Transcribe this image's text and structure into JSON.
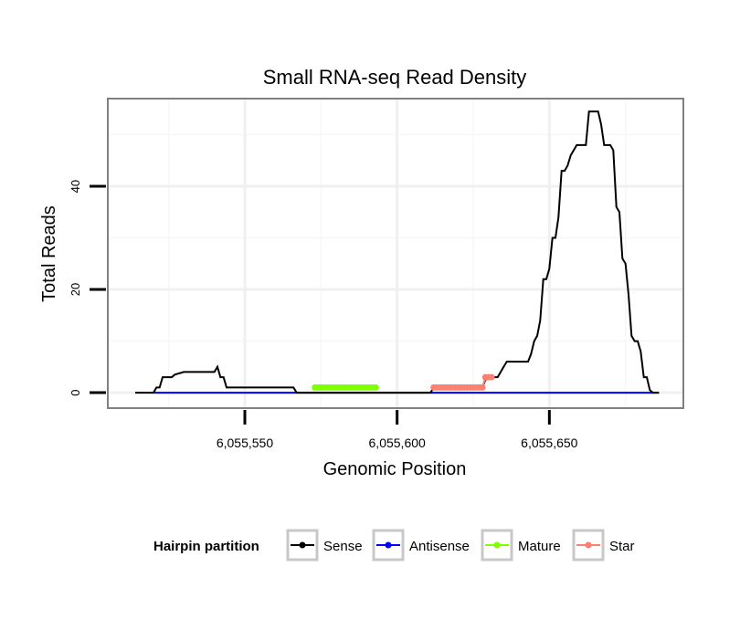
{
  "chart_data": {
    "type": "line",
    "title": "Small RNA-seq Read Density",
    "xlabel": "Genomic Position",
    "ylabel": "Total Reads",
    "xlim": [
      6055505,
      6055694
    ],
    "ylim": [
      -3,
      57
    ],
    "x_ticks": [
      6055550,
      6055600,
      6055650
    ],
    "x_tick_labels": [
      "6,055,550",
      "6,055,600",
      "6,055,650"
    ],
    "y_ticks": [
      0,
      20,
      40
    ],
    "y_tick_labels": [
      "0",
      "20",
      "40"
    ],
    "grid": true,
    "legend": {
      "title": "Hairpin partition",
      "position": "bottom",
      "entries": [
        "Sense",
        "Antisense",
        "Mature",
        "Star"
      ]
    },
    "series": [
      {
        "name": "Sense",
        "color": "#000000",
        "x": [
          6055514,
          6055520,
          6055521,
          6055522,
          6055523,
          6055525,
          6055526,
          6055527,
          6055530,
          6055531,
          6055537,
          6055540,
          6055541,
          6055542,
          6055543,
          6055544,
          6055566,
          6055567,
          6055611,
          6055612,
          6055628,
          6055629,
          6055632,
          6055633,
          6055635,
          6055636,
          6055640,
          6055641,
          6055642,
          6055643,
          6055644,
          6055645,
          6055646,
          6055647,
          6055648,
          6055649,
          6055650,
          6055651,
          6055652,
          6055653,
          6055654,
          6055655,
          6055656,
          6055657,
          6055658,
          6055659,
          6055661,
          6055662,
          6055663,
          6055664,
          6055665,
          6055666,
          6055667,
          6055668,
          6055669,
          6055670,
          6055671,
          6055672,
          6055673,
          6055674,
          6055675,
          6055676,
          6055677,
          6055678,
          6055679,
          6055680,
          6055681,
          6055682,
          6055683,
          6055684,
          6055685,
          6055686
        ],
        "values": [
          0,
          0,
          1,
          1,
          3,
          3,
          3,
          3.5,
          4,
          4,
          4,
          4,
          5,
          3,
          3,
          1,
          1,
          0,
          0,
          1,
          1,
          2.5,
          3,
          3,
          5,
          6,
          6,
          6,
          6,
          6,
          7.5,
          10,
          11,
          14,
          22,
          22,
          24,
          30,
          30,
          34,
          43,
          43,
          44,
          46,
          47,
          48,
          48,
          48,
          54.5,
          54.5,
          54.5,
          54.5,
          52,
          48,
          48,
          48,
          47,
          36,
          35,
          26,
          25,
          19,
          11,
          10,
          10,
          8,
          3,
          3,
          0.5,
          0,
          0,
          0
        ]
      },
      {
        "name": "Antisense",
        "color": "#0000ff",
        "x": [
          6055520,
          6055686
        ],
        "values": [
          0,
          0
        ]
      },
      {
        "name": "Mature",
        "color": "#7fff00",
        "x": [
          6055573,
          6055574,
          6055575,
          6055576,
          6055577,
          6055578,
          6055579,
          6055580,
          6055581,
          6055582,
          6055583,
          6055584,
          6055585,
          6055586,
          6055587,
          6055588,
          6055589,
          6055590,
          6055591,
          6055592,
          6055593
        ],
        "values": [
          1,
          1,
          1,
          1,
          1,
          1,
          1,
          1,
          1,
          1,
          1,
          1,
          1,
          1,
          1,
          1,
          1,
          1,
          1,
          1,
          1
        ]
      },
      {
        "name": "Star",
        "color": "#fa8072",
        "x": [
          6055612,
          6055613,
          6055614,
          6055615,
          6055616,
          6055617,
          6055618,
          6055619,
          6055620,
          6055621,
          6055622,
          6055623,
          6055624,
          6055625,
          6055626,
          6055627,
          6055628,
          6055629,
          6055630,
          6055631
        ],
        "values": [
          1,
          1,
          1,
          1,
          1,
          1,
          1,
          1,
          1,
          1,
          1,
          1,
          1,
          1,
          1,
          1,
          1,
          3,
          3,
          3
        ]
      }
    ]
  }
}
